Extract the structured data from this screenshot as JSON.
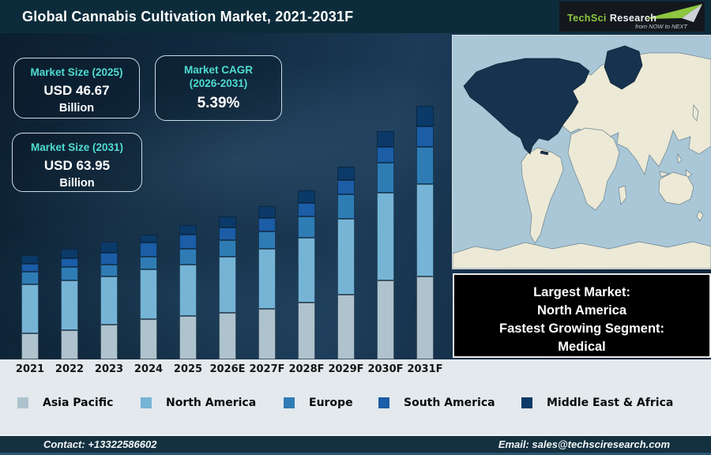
{
  "header": {
    "title": "Global Cannabis Cultivation Market, 2021-2031F",
    "logo": {
      "brand_primary": "TechSci",
      "brand_secondary": "Research",
      "tagline": "from NOW to NEXT"
    }
  },
  "stat_cards": {
    "market_size_2025": {
      "label": "Market Size (2025)",
      "value": "USD 46.67",
      "unit": "Billion"
    },
    "market_cagr": {
      "label_line1": "Market CAGR",
      "label_line2": "(2026-2031)",
      "value": "5.39%"
    },
    "market_size_2031": {
      "label": "Market Size (2031)",
      "value": "USD 63.95",
      "unit": "Billion"
    }
  },
  "chart_data": {
    "type": "bar",
    "stacked": true,
    "title": "Global Cannabis Cultivation Market, 2021-2031F",
    "categories": [
      "2021",
      "2022",
      "2023",
      "2024",
      "2025",
      "2026E",
      "2027F",
      "2028F",
      "2029F",
      "2030F",
      "2031F"
    ],
    "series": [
      {
        "name": "Asia Pacific",
        "color": "#aec3cd",
        "values": [
          33,
          37,
          44,
          51,
          55,
          59,
          64,
          72,
          82,
          100,
          105
        ]
      },
      {
        "name": "North America",
        "color": "#76b4d6",
        "values": [
          62,
          63,
          61,
          63,
          65,
          71,
          76,
          82,
          96,
          111,
          117
        ]
      },
      {
        "name": "Europe",
        "color": "#2f7cb5",
        "values": [
          16,
          17,
          15,
          16,
          20,
          21,
          22,
          27,
          31,
          38,
          47
        ]
      },
      {
        "name": "South America",
        "color": "#1b5da6",
        "values": [
          10,
          11,
          15,
          18,
          18,
          16,
          17,
          17,
          18,
          20,
          26
        ]
      },
      {
        "name": "Middle East & Africa",
        "color": "#0b3a68",
        "values": [
          11,
          12,
          14,
          10,
          12,
          14,
          15,
          16,
          17,
          20,
          26
        ]
      }
    ],
    "value_units": "relative stacked-segment height in px (chart shows no y-axis)",
    "known_totals": {
      "2025": "USD 46.67 Billion",
      "2031": "USD 63.95 Billion"
    },
    "xlabel": "",
    "ylabel": "",
    "grid": false,
    "legend_position": "bottom"
  },
  "map": {
    "highlight_region": "North America"
  },
  "info_box": {
    "lines": [
      "Largest Market:",
      "North America",
      "Fastest Growing Segment:",
      "Medical"
    ]
  },
  "footer": {
    "contact": "Contact: +13322586602",
    "email": "Email: sales@techsciresearch.com"
  },
  "colors": {
    "header_bg": "#0d2c3b",
    "footer_bg": "#14313f",
    "band_bg": "#e3e9ec",
    "accent_teal": "#4fdcd0",
    "logo_green": "#8dc63f",
    "map_ocean": "#a9c7d6",
    "map_land": "#ece9d6",
    "map_highlight": "#16324e",
    "info_box_bg": "#000000"
  }
}
